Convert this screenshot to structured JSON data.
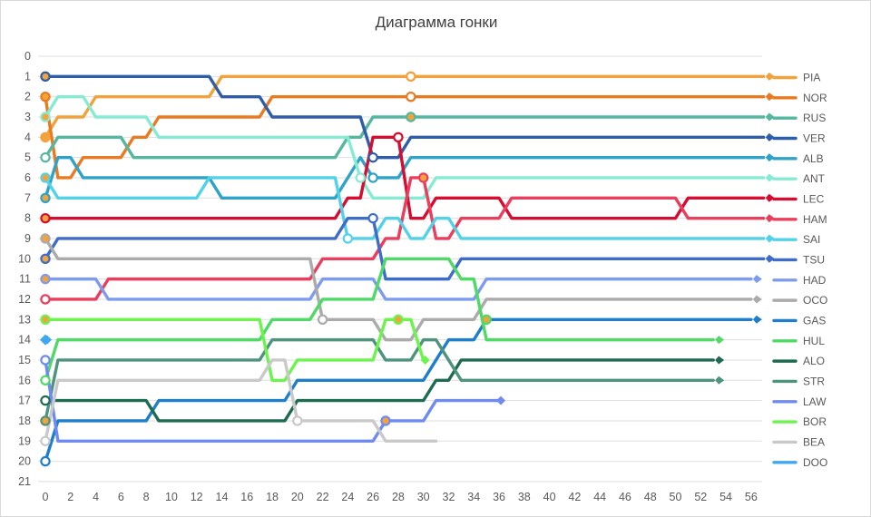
{
  "chart_data": {
    "type": "line",
    "subtype": "race-position-bump-chart",
    "title": "Диаграмма гонки",
    "xlabel": "",
    "ylabel": "",
    "x_ticks": [
      0,
      2,
      4,
      6,
      8,
      10,
      12,
      14,
      16,
      18,
      20,
      22,
      24,
      26,
      28,
      30,
      32,
      34,
      36,
      38,
      40,
      42,
      44,
      46,
      48,
      50,
      52,
      54,
      56
    ],
    "y_ticks": [
      0,
      1,
      2,
      3,
      4,
      5,
      6,
      7,
      8,
      9,
      10,
      11,
      12,
      13,
      14,
      15,
      16,
      17,
      18,
      19,
      20,
      21
    ],
    "xlim": [
      0,
      57
    ],
    "ylim_top_to_bottom": [
      0,
      21
    ],
    "grid": "horizontal",
    "grid_color": "#dedede",
    "axis_label_color": "#595959",
    "legend_position": "right",
    "marker_fills": {
      "medium_tyre": "#f2a33c",
      "hard_tyre": "#ffffff"
    },
    "series": [
      {
        "name": "PIA",
        "color": "#f2a23c",
        "breakpoints": [
          [
            0,
            4
          ],
          [
            1,
            3
          ],
          [
            4,
            2
          ],
          [
            14,
            1
          ]
        ],
        "end_lap": 57,
        "finished": true,
        "start_marker": "medium_tyre",
        "pit_markers": [
          {
            "lap": 29,
            "pos": 1,
            "fill": "hard_tyre"
          }
        ]
      },
      {
        "name": "NOR",
        "color": "#e87a22",
        "breakpoints": [
          [
            0,
            2
          ],
          [
            1,
            6
          ],
          [
            3,
            5
          ],
          [
            7,
            4
          ],
          [
            9,
            3
          ],
          [
            18,
            2
          ]
        ],
        "end_lap": 57,
        "finished": true,
        "start_marker": "medium_tyre",
        "pit_markers": [
          {
            "lap": 29,
            "pos": 2,
            "fill": "hard_tyre"
          }
        ]
      },
      {
        "name": "RUS",
        "color": "#55b7a0",
        "breakpoints": [
          [
            0,
            5
          ],
          [
            1,
            4
          ],
          [
            7,
            5
          ],
          [
            24,
            4
          ],
          [
            26,
            3
          ]
        ],
        "end_lap": 57,
        "finished": true,
        "start_marker": "hard_tyre",
        "pit_markers": [
          {
            "lap": 29,
            "pos": 3,
            "fill": "medium_tyre"
          }
        ]
      },
      {
        "name": "VER",
        "color": "#2f5da8",
        "breakpoints": [
          [
            0,
            1
          ],
          [
            14,
            2
          ],
          [
            18,
            3
          ],
          [
            26,
            5
          ],
          [
            29,
            4
          ]
        ],
        "end_lap": 57,
        "finished": true,
        "start_marker": "medium_tyre",
        "pit_markers": [
          {
            "lap": 26,
            "pos": 5,
            "fill": "hard_tyre"
          }
        ]
      },
      {
        "name": "ALB",
        "color": "#2fa3c7",
        "breakpoints": [
          [
            0,
            7
          ],
          [
            1,
            5
          ],
          [
            3,
            6
          ],
          [
            14,
            7
          ],
          [
            24,
            6
          ],
          [
            25,
            5
          ],
          [
            26,
            6
          ],
          [
            29,
            5
          ]
        ],
        "end_lap": 57,
        "finished": true,
        "start_marker": "medium_tyre",
        "pit_markers": [
          {
            "lap": 26,
            "pos": 6,
            "fill": "hard_tyre"
          }
        ]
      },
      {
        "name": "ANT",
        "color": "#86ebd3",
        "breakpoints": [
          [
            0,
            3
          ],
          [
            1,
            2
          ],
          [
            4,
            3
          ],
          [
            9,
            4
          ],
          [
            25,
            6
          ],
          [
            26,
            7
          ],
          [
            31,
            6
          ]
        ],
        "end_lap": 57,
        "finished": true,
        "start_marker": "medium_tyre",
        "pit_markers": [
          {
            "lap": 25,
            "pos": 6,
            "fill": "hard_tyre"
          }
        ]
      },
      {
        "name": "LEC",
        "color": "#d40d31",
        "breakpoints": [
          [
            0,
            8
          ],
          [
            24,
            7
          ],
          [
            26,
            4
          ],
          [
            29,
            8
          ],
          [
            31,
            7
          ],
          [
            37,
            8
          ],
          [
            51,
            7
          ]
        ],
        "end_lap": 57,
        "finished": true,
        "start_marker": "medium_tyre",
        "pit_markers": [
          {
            "lap": 28,
            "pos": 4,
            "fill": "hard_tyre"
          }
        ]
      },
      {
        "name": "HAM",
        "color": "#e93e5c",
        "breakpoints": [
          [
            0,
            12
          ],
          [
            5,
            11
          ],
          [
            22,
            10
          ],
          [
            27,
            9
          ],
          [
            29,
            6
          ],
          [
            31,
            9
          ],
          [
            33,
            8
          ],
          [
            37,
            7
          ],
          [
            51,
            8
          ]
        ],
        "end_lap": 57,
        "finished": true,
        "start_marker": "hard_tyre",
        "pit_markers": [
          {
            "lap": 30,
            "pos": 6,
            "fill": "medium_tyre"
          }
        ]
      },
      {
        "name": "SAI",
        "color": "#52d2e8",
        "breakpoints": [
          [
            0,
            6
          ],
          [
            1,
            7
          ],
          [
            13,
            6
          ],
          [
            24,
            9
          ],
          [
            27,
            8
          ],
          [
            29,
            9
          ],
          [
            31,
            8
          ],
          [
            33,
            9
          ]
        ],
        "end_lap": 57,
        "finished": true,
        "start_marker": "medium_tyre",
        "pit_markers": [
          {
            "lap": 24,
            "pos": 9,
            "fill": "hard_tyre"
          }
        ]
      },
      {
        "name": "TSU",
        "color": "#3e6cc9",
        "breakpoints": [
          [
            0,
            10
          ],
          [
            1,
            9
          ],
          [
            24,
            8
          ],
          [
            27,
            11
          ],
          [
            33,
            10
          ]
        ],
        "end_lap": 57,
        "finished": true,
        "start_marker": "medium_tyre",
        "pit_markers": [
          {
            "lap": 26,
            "pos": 8,
            "fill": "hard_tyre"
          }
        ]
      },
      {
        "name": "HAD",
        "color": "#7e9cef",
        "breakpoints": [
          [
            0,
            11
          ],
          [
            5,
            12
          ],
          [
            22,
            11
          ],
          [
            27,
            12
          ],
          [
            35,
            11
          ]
        ],
        "end_lap": 56,
        "finished": true,
        "start_marker": "medium_tyre",
        "pit_markers": []
      },
      {
        "name": "OCO",
        "color": "#ababab",
        "breakpoints": [
          [
            0,
            9
          ],
          [
            1,
            10
          ],
          [
            22,
            13
          ],
          [
            27,
            14
          ],
          [
            30,
            13
          ],
          [
            35,
            12
          ]
        ],
        "end_lap": 56,
        "finished": true,
        "start_marker": "medium_tyre",
        "pit_markers": [
          {
            "lap": 22,
            "pos": 13,
            "fill": "hard_tyre"
          }
        ]
      },
      {
        "name": "GAS",
        "color": "#1f7eca",
        "breakpoints": [
          [
            0,
            20
          ],
          [
            1,
            18
          ],
          [
            9,
            17
          ],
          [
            20,
            16
          ],
          [
            31,
            15
          ],
          [
            32,
            14
          ],
          [
            35,
            13
          ]
        ],
        "end_lap": 56,
        "finished": true,
        "start_marker": "hard_tyre",
        "pit_markers": []
      },
      {
        "name": "HUL",
        "color": "#4fd966",
        "breakpoints": [
          [
            0,
            16
          ],
          [
            1,
            14
          ],
          [
            18,
            13
          ],
          [
            22,
            12
          ],
          [
            27,
            10
          ],
          [
            33,
            11
          ],
          [
            35,
            14
          ]
        ],
        "end_lap": 53,
        "finished": true,
        "start_marker": "hard_tyre",
        "pit_markers": [
          {
            "lap": 35,
            "pos": 13,
            "fill": "medium_tyre"
          }
        ]
      },
      {
        "name": "ALO",
        "color": "#1e6b52",
        "breakpoints": [
          [
            0,
            17
          ],
          [
            9,
            18
          ],
          [
            20,
            17
          ],
          [
            31,
            16
          ],
          [
            33,
            15
          ]
        ],
        "end_lap": 53,
        "finished": true,
        "start_marker": "hard_tyre",
        "pit_markers": []
      },
      {
        "name": "STR",
        "color": "#4e937d",
        "breakpoints": [
          [
            0,
            18
          ],
          [
            1,
            15
          ],
          [
            18,
            14
          ],
          [
            27,
            15
          ],
          [
            30,
            14
          ],
          [
            32,
            15
          ],
          [
            33,
            16
          ]
        ],
        "end_lap": 53,
        "finished": true,
        "start_marker": "medium_tyre",
        "pit_markers": []
      },
      {
        "name": "LAW",
        "color": "#6f8bf2",
        "breakpoints": [
          [
            0,
            15
          ],
          [
            1,
            19
          ],
          [
            27,
            18
          ],
          [
            31,
            17
          ]
        ],
        "end_lap": 36,
        "finished": false,
        "retire_marker": "diamond",
        "start_marker": "hard_tyre",
        "pit_markers": [
          {
            "lap": 27,
            "pos": 18,
            "fill": "medium_tyre"
          }
        ]
      },
      {
        "name": "BOR",
        "color": "#6bf54c",
        "breakpoints": [
          [
            0,
            13
          ],
          [
            18,
            16
          ],
          [
            20,
            15
          ],
          [
            27,
            13
          ],
          [
            30,
            15
          ]
        ],
        "end_lap": 30,
        "finished": false,
        "retire_marker": "diamond",
        "start_marker": "medium_tyre",
        "pit_markers": [
          {
            "lap": 28,
            "pos": 13,
            "fill": "medium_tyre"
          }
        ]
      },
      {
        "name": "BEA",
        "color": "#c9c9c9",
        "breakpoints": [
          [
            0,
            19
          ],
          [
            1,
            16
          ],
          [
            18,
            15
          ],
          [
            20,
            18
          ],
          [
            27,
            19
          ]
        ],
        "end_lap": 31,
        "finished": false,
        "retire_marker": "none",
        "start_marker": "hard_tyre",
        "pit_markers": [
          {
            "lap": 20,
            "pos": 18,
            "fill": "hard_tyre"
          }
        ]
      },
      {
        "name": "DOO",
        "color": "#3fa8f0",
        "breakpoints": [
          [
            0,
            14
          ]
        ],
        "end_lap": 0,
        "finished": false,
        "retire_marker": "diamond",
        "start_marker": "diamond",
        "pit_markers": []
      }
    ]
  }
}
